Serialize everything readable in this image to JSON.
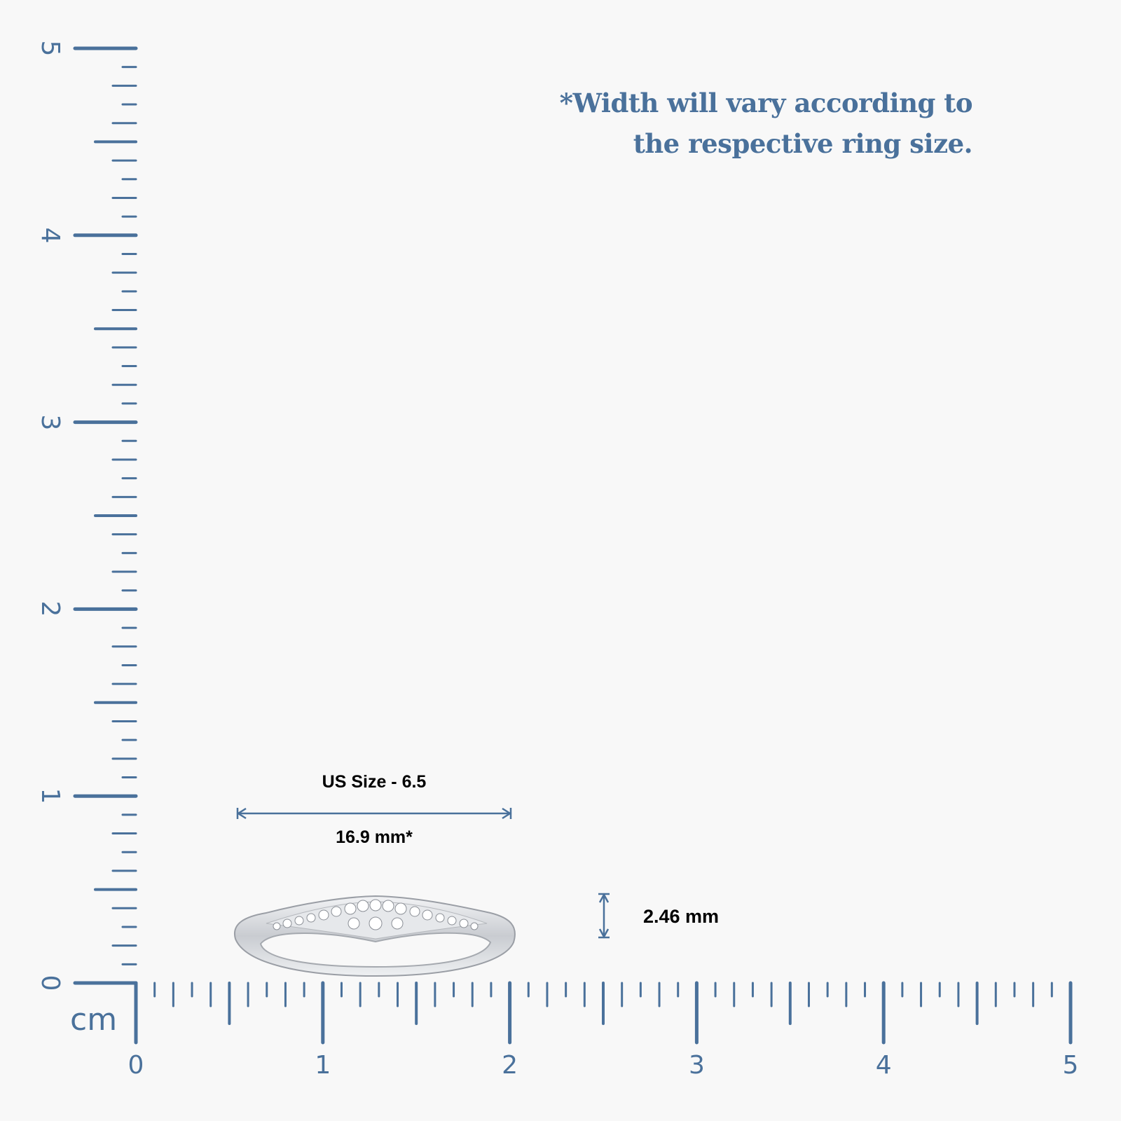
{
  "note": {
    "line1": "*Width will vary according to",
    "line2": "the respective ring size."
  },
  "ruler": {
    "unit": "cm",
    "horizontal_labels": [
      "0",
      "1",
      "2",
      "3",
      "4",
      "5"
    ],
    "vertical_labels": [
      "0",
      "1",
      "2",
      "3",
      "4",
      "5"
    ],
    "color": "#4a719b"
  },
  "dimensions": {
    "size_label": "US Size - 6.5",
    "width_label": "16.9 mm*",
    "height_label": "2.46 mm"
  },
  "product": {
    "icon": "diamond-ring-side-view"
  }
}
